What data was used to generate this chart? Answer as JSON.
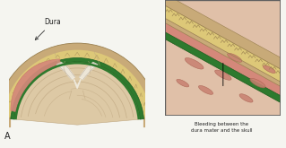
{
  "background_color": "#f5f5f0",
  "label_A": "A",
  "label_dura": "Dura",
  "label_bleeding": "Bleeding between the\ndura mater and the skull",
  "skull_outer_color": "#c8aa78",
  "skull_mid_color": "#ddc878",
  "skull_inner_color": "#c8aa78",
  "dura_color": "#2e7a2e",
  "dura_edge": "#1a5a1a",
  "brain_color": "#ddc9a5",
  "brain_gyri_color": "#c0a882",
  "blood_hematoma": "#d4887a",
  "blood_hematoma2": "#c87868",
  "bone_line_color": "#9a8050",
  "zoom_bg_brain": "#e0c0a8",
  "zoom_bg_blood": "#d09888",
  "zoom_box_edge": "#606060",
  "vessel_color": "#c88070",
  "vessel_edge": "#a86050",
  "white_matter": "#f0ece0",
  "text_color": "#222222",
  "annotation_color": "#333333"
}
